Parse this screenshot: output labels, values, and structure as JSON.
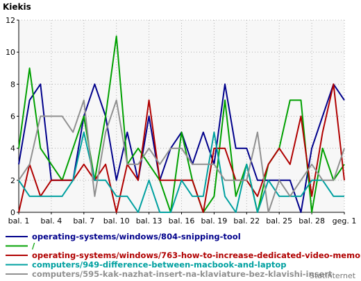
{
  "chart_data": {
    "type": "line",
    "title": "Kiekis",
    "xlabel": "",
    "ylabel": "",
    "ylim": [
      0,
      12
    ],
    "yticks": [
      0,
      2,
      4,
      6,
      8,
      10,
      12
    ],
    "grid": true,
    "legend_position": "bottom",
    "x_tick_labels": [
      "bal. 1",
      "bal. 4",
      "bal. 7",
      "bal. 10",
      "bal. 13",
      "bal. 16",
      "bal. 19",
      "bal. 22",
      "bal. 25",
      "bal. 28",
      "geg. 1"
    ],
    "x_tick_positions": [
      0,
      3,
      6,
      9,
      12,
      15,
      18,
      21,
      24,
      27,
      30
    ],
    "x_count": 31,
    "series": [
      {
        "name": "operating-systems/windows/804-snipping-tool",
        "color": "#00008b",
        "values": [
          3,
          7,
          8,
          2,
          2,
          2,
          6,
          8,
          6,
          2,
          5,
          2,
          6,
          2,
          4,
          5,
          3,
          5,
          3,
          8,
          4,
          4,
          2,
          2,
          2,
          2,
          0,
          4,
          6,
          8,
          7
        ]
      },
      {
        "name": "/",
        "color": "#00a000",
        "values": [
          4,
          9,
          4,
          3,
          2,
          4,
          6,
          2,
          6,
          11,
          3,
          4,
          3,
          2,
          0,
          5,
          2,
          0,
          1,
          7,
          1,
          3,
          0,
          3,
          4,
          7,
          7,
          0,
          4,
          2,
          3
        ]
      },
      {
        "name": "operating-systems/windows/763-how-to-increase-dedicated-video-memory",
        "color": "#b00000",
        "values": [
          0,
          3,
          1,
          2,
          2,
          2,
          3,
          2,
          3,
          0,
          3,
          2,
          7,
          2,
          2,
          2,
          2,
          0,
          4,
          4,
          2,
          2,
          1,
          3,
          4,
          3,
          6,
          1,
          5,
          8,
          2
        ]
      },
      {
        "name": "computers/949-difference-between-macbook-and-laptop",
        "color": "#00a0a0",
        "values": [
          2,
          1,
          1,
          1,
          1,
          2,
          5,
          2,
          2,
          1,
          1,
          0,
          2,
          0,
          0,
          2,
          1,
          1,
          5,
          1,
          0,
          3,
          0,
          2,
          1,
          1,
          1,
          2,
          2,
          1,
          1
        ]
      },
      {
        "name": "computers/595-kak-nazhat-insert-na-klaviature-bez-klavishi-insert",
        "color": "#909090",
        "values": [
          2,
          3,
          6,
          6,
          6,
          5,
          7,
          1,
          5,
          7,
          3,
          3,
          4,
          3,
          4,
          4,
          3,
          3,
          3,
          2,
          2,
          2,
          5,
          0,
          2,
          1,
          2,
          3,
          2,
          2,
          4
        ]
      }
    ]
  },
  "watermark": "StatInternet"
}
